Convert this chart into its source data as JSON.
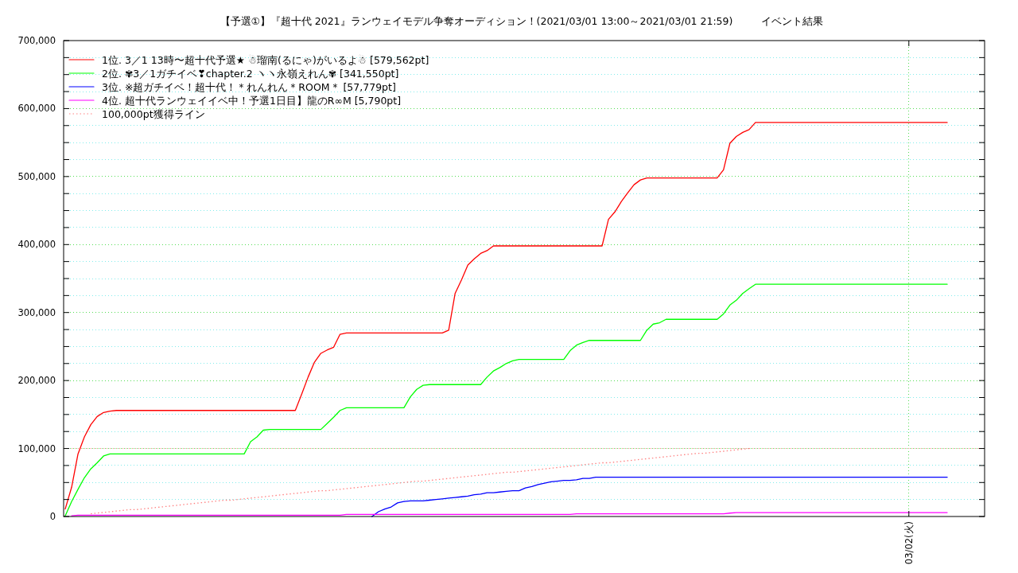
{
  "chart_data": {
    "type": "line",
    "title": "【予選①】『超十代 2021』ランウェイモデル争奪オーディション！(2021/03/01 13:00～2021/03/01 21:59)",
    "subtitle": "イベント結果",
    "categories": [
      null,
      null,
      null,
      null,
      null,
      null,
      null,
      null,
      null,
      null,
      null,
      null,
      null,
      null,
      null,
      null,
      null,
      null,
      null,
      null,
      null,
      null,
      null,
      null,
      null,
      null,
      null,
      null,
      null,
      null,
      null,
      null,
      null,
      null,
      null,
      null,
      null,
      null,
      null,
      null,
      null,
      null,
      null,
      null,
      null,
      null,
      null,
      null,
      null,
      null,
      null,
      null,
      null,
      null,
      null,
      null,
      null,
      null,
      null,
      null,
      null,
      null,
      null,
      null,
      null,
      null,
      null,
      null,
      null,
      null,
      null,
      null,
      null,
      null,
      null,
      null,
      null,
      null,
      null,
      null,
      null,
      null,
      null,
      null,
      null,
      null,
      null,
      null,
      null,
      null,
      null,
      null,
      null,
      null,
      null,
      null,
      null,
      null,
      null,
      null,
      null,
      null,
      null,
      null,
      null,
      null,
      null,
      null,
      null,
      null,
      null,
      null,
      null,
      null,
      null,
      null,
      null,
      null,
      null,
      null,
      null,
      null,
      null,
      null,
      null,
      null,
      null,
      null,
      null,
      null,
      null,
      null,
      "03/02(火)",
      null,
      null,
      null,
      null,
      null,
      null
    ],
    "ylim": [
      0,
      700000
    ],
    "yticks": [
      {
        "value": 0,
        "label": "0"
      },
      {
        "value": 25000,
        "label": null
      },
      {
        "value": 50000,
        "label": null
      },
      {
        "value": 75000,
        "label": null
      },
      {
        "value": 100000,
        "label": "100,000"
      },
      {
        "value": 125000,
        "label": null
      },
      {
        "value": 150000,
        "label": null
      },
      {
        "value": 175000,
        "label": null
      },
      {
        "value": 200000,
        "label": "200,000"
      },
      {
        "value": 225000,
        "label": null
      },
      {
        "value": 250000,
        "label": null
      },
      {
        "value": 275000,
        "label": null
      },
      {
        "value": 300000,
        "label": "300,000"
      },
      {
        "value": 325000,
        "label": null
      },
      {
        "value": 350000,
        "label": null
      },
      {
        "value": 375000,
        "label": null
      },
      {
        "value": 400000,
        "label": "400,000"
      },
      {
        "value": 425000,
        "label": null
      },
      {
        "value": 450000,
        "label": null
      },
      {
        "value": 475000,
        "label": null
      },
      {
        "value": 500000,
        "label": "500,000"
      },
      {
        "value": 525000,
        "label": null
      },
      {
        "value": 550000,
        "label": null
      },
      {
        "value": 575000,
        "label": null
      },
      {
        "value": 600000,
        "label": "600,000"
      },
      {
        "value": 625000,
        "label": null
      },
      {
        "value": 650000,
        "label": null
      },
      {
        "value": 675000,
        "label": null
      },
      {
        "value": 700000,
        "label": "700,000"
      }
    ],
    "grid": true,
    "legend": "top left",
    "line_style": "solid",
    "ref_lines": [
      {
        "axis": "y",
        "value": 100000,
        "color": "#ff8080",
        "line_style": "dotted"
      }
    ],
    "series": [
      {
        "name": "1位. 3／1 13時〜超十代予選★ ☃瑠南(るにゃ)がいるよ☃ [579,562pt]",
        "color": "#ff0000",
        "values": [
          11000,
          43000,
          92000,
          117000,
          135000,
          147000,
          153000,
          155000,
          156000,
          156000,
          156000,
          156000,
          156000,
          156000,
          156000,
          156000,
          156000,
          156000,
          156000,
          156000,
          156000,
          156000,
          156000,
          156000,
          156000,
          156000,
          156000,
          156000,
          156000,
          156000,
          156000,
          156000,
          156000,
          156000,
          156000,
          156000,
          156000,
          180000,
          205000,
          227000,
          240000,
          245000,
          249000,
          268000,
          270000,
          270000,
          270000,
          270000,
          270000,
          270000,
          270000,
          270000,
          270000,
          270000,
          270000,
          270000,
          270000,
          270000,
          270000,
          270000,
          274000,
          328000,
          348000,
          370000,
          379000,
          387000,
          391000,
          398000,
          398000,
          398000,
          398000,
          398000,
          398000,
          398000,
          398000,
          398000,
          398000,
          398000,
          398000,
          398000,
          398000,
          398000,
          398000,
          398000,
          398000,
          437000,
          448000,
          463000,
          476000,
          488000,
          495000,
          498000,
          498000,
          498000,
          498000,
          498000,
          498000,
          498000,
          498000,
          498000,
          498000,
          498000,
          498000,
          510000,
          549000,
          559000,
          565000,
          569000,
          579562,
          579562,
          579562,
          579562,
          579562,
          579562,
          579562,
          579562,
          579562,
          579562,
          579562,
          579562,
          579562,
          579562,
          579562,
          579562,
          579562,
          579562,
          579562,
          579562,
          579562,
          579562,
          579562,
          579562,
          579562,
          579562,
          579562,
          579562,
          579562,
          579562,
          579562
        ]
      },
      {
        "name": "2位. ✾3／1ガチイベ❣chapter.2 ヽヽ永嶺えれん✾ [341,550pt]",
        "color": "#00ff00",
        "values": [
          1000,
          22000,
          40000,
          57000,
          70000,
          79000,
          89000,
          92000,
          92000,
          92000,
          92000,
          92000,
          92000,
          92000,
          92000,
          92000,
          92000,
          92000,
          92000,
          92000,
          92000,
          92000,
          92000,
          92000,
          92000,
          92000,
          92000,
          92000,
          92000,
          110000,
          117000,
          127000,
          128000,
          128000,
          128000,
          128000,
          128000,
          128000,
          128000,
          128000,
          128000,
          137000,
          146000,
          156000,
          160000,
          160000,
          160000,
          160000,
          160000,
          160000,
          160000,
          160000,
          160000,
          160000,
          176000,
          187000,
          193000,
          194000,
          194000,
          194000,
          194000,
          194000,
          194000,
          194000,
          194000,
          194000,
          205000,
          214000,
          219000,
          225000,
          229000,
          231000,
          231000,
          231000,
          231000,
          231000,
          231000,
          231000,
          231000,
          244000,
          252000,
          256000,
          259000,
          259000,
          259000,
          259000,
          259000,
          259000,
          259000,
          259000,
          259000,
          274000,
          283000,
          285000,
          290000,
          290000,
          290000,
          290000,
          290000,
          290000,
          290000,
          290000,
          290000,
          298000,
          311000,
          318000,
          328000,
          335000,
          341550,
          341550,
          341550,
          341550,
          341550,
          341550,
          341550,
          341550,
          341550,
          341550,
          341550,
          341550,
          341550,
          341550,
          341550,
          341550,
          341550,
          341550,
          341550,
          341550,
          341550,
          341550,
          341550,
          341550,
          341550,
          341550,
          341550,
          341550,
          341550,
          341550,
          341550
        ]
      },
      {
        "name": "3位. ※超ガチイベ！超十代！＊れんれん＊ROOM＊ [57,779pt]",
        "color": "#0000ff",
        "values": [
          null,
          null,
          null,
          null,
          null,
          null,
          null,
          null,
          null,
          null,
          null,
          null,
          null,
          null,
          null,
          null,
          null,
          null,
          null,
          null,
          null,
          null,
          null,
          null,
          null,
          null,
          null,
          null,
          null,
          null,
          null,
          null,
          null,
          null,
          null,
          null,
          null,
          null,
          null,
          null,
          null,
          null,
          null,
          null,
          null,
          null,
          null,
          null,
          0,
          7000,
          11000,
          14000,
          20000,
          22000,
          23000,
          23000,
          23000,
          24000,
          25000,
          26000,
          27000,
          28000,
          29000,
          30000,
          32000,
          33000,
          35000,
          35000,
          36000,
          37000,
          38000,
          38000,
          42000,
          44000,
          47000,
          49000,
          51000,
          52000,
          53000,
          53000,
          54000,
          56000,
          56000,
          57779,
          57779,
          57779,
          57779,
          57779,
          57779,
          57779,
          57779,
          57779,
          57779,
          57779,
          57779,
          57779,
          57779,
          57779,
          57779,
          57779,
          57779,
          57779,
          57779,
          57779,
          57779,
          57779,
          57779,
          57779,
          57779,
          57779,
          57779,
          57779,
          57779,
          57779,
          57779,
          57779,
          57779,
          57779,
          57779,
          57779,
          57779,
          57779,
          57779,
          57779,
          57779,
          57779,
          57779,
          57779,
          57779,
          57779,
          57779,
          57779,
          57779,
          57779,
          57779,
          57779,
          57779,
          57779,
          57779
        ]
      },
      {
        "name": "4位. 超十代ランウェイイベ中！予選1日目】龍のR∞M [5,790pt]",
        "color": "#ff00ff",
        "values": [
          null,
          1000,
          2000,
          2000,
          2000,
          2000,
          2000,
          2000,
          2000,
          2000,
          2000,
          2000,
          2000,
          2000,
          2000,
          2000,
          2000,
          2000,
          2000,
          2000,
          2000,
          2000,
          2000,
          2000,
          2000,
          2000,
          2000,
          2000,
          2000,
          2000,
          2000,
          2000,
          2000,
          2000,
          2000,
          2000,
          2000,
          2000,
          2000,
          2000,
          2000,
          2000,
          2000,
          2000,
          3000,
          3000,
          3000,
          3000,
          3000,
          3000,
          3000,
          3000,
          3000,
          3000,
          3000,
          3000,
          3000,
          3000,
          3000,
          3000,
          3000,
          3000,
          3000,
          3000,
          3000,
          3000,
          3000,
          3000,
          3000,
          3000,
          3000,
          3000,
          3000,
          3000,
          3000,
          3000,
          3000,
          3000,
          3000,
          3000,
          4000,
          4000,
          4000,
          4000,
          4000,
          4000,
          4000,
          4000,
          4000,
          4000,
          4000,
          4000,
          4000,
          4000,
          4000,
          4000,
          4000,
          4000,
          4000,
          4000,
          4000,
          4000,
          4000,
          4000,
          5000,
          5790,
          5790,
          5790,
          5790,
          5790,
          5790,
          5790,
          5790,
          5790,
          5790,
          5790,
          5790,
          5790,
          5790,
          5790,
          5790,
          5790,
          5790,
          5790,
          5790,
          5790,
          5790,
          5790,
          5790,
          5790,
          5790,
          5790,
          5790,
          5790,
          5790,
          5790,
          5790,
          5790,
          5790
        ]
      },
      {
        "name": "100,000pt獲得ライン",
        "color": "#ff8080",
        "line_style": "dotted",
        "values": [
          null,
          null,
          null,
          null,
          4000,
          5000,
          6000,
          7000,
          8000,
          9000,
          10000,
          10000,
          11000,
          12000,
          13000,
          14000,
          15000,
          16000,
          17000,
          18000,
          19000,
          20000,
          21000,
          22000,
          23000,
          24000,
          24000,
          25000,
          26000,
          27000,
          28000,
          29000,
          30000,
          31000,
          32000,
          33000,
          34000,
          35000,
          36000,
          37000,
          38000,
          38000,
          39000,
          40000,
          41000,
          42000,
          43000,
          44000,
          45000,
          46000,
          47000,
          48000,
          49000,
          50000,
          51000,
          52000,
          52000,
          53000,
          54000,
          55000,
          56000,
          57000,
          58000,
          59000,
          60000,
          61000,
          62000,
          63000,
          64000,
          65000,
          65000,
          66000,
          67000,
          68000,
          69000,
          70000,
          71000,
          72000,
          73000,
          74000,
          75000,
          76000,
          77000,
          78000,
          79000,
          79000,
          80000,
          81000,
          82000,
          83000,
          84000,
          85000,
          86000,
          87000,
          88000,
          89000,
          90000,
          91000,
          92000,
          93000,
          93000,
          94000,
          95000,
          96000,
          97000,
          98000,
          99000,
          100000,
          null,
          null,
          null,
          null,
          null,
          null,
          null,
          null,
          null,
          null,
          null,
          null,
          null,
          null,
          null,
          null,
          null,
          null,
          null,
          null,
          null,
          null,
          null,
          null,
          null,
          null,
          null,
          null,
          null,
          null,
          null
        ]
      }
    ]
  }
}
